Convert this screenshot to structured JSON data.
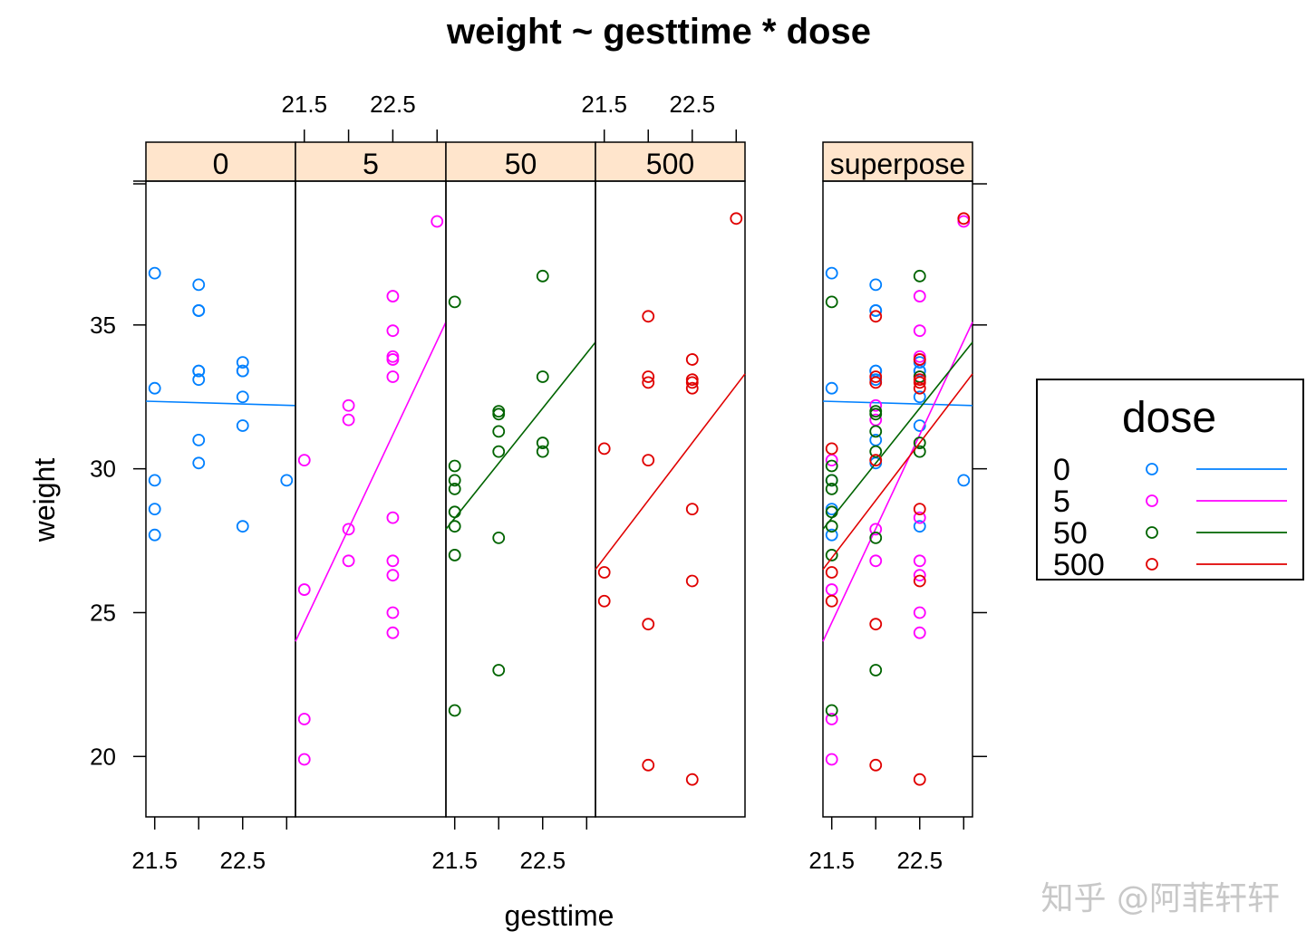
{
  "chart_data": {
    "type": "scatter",
    "title": "weight ~ gesttime * dose",
    "xlabel": "gesttime",
    "ylabel": "weight",
    "xlim": [
      21.4,
      23.1
    ],
    "ylim": [
      17.9,
      40.0
    ],
    "x_ticks": [
      21.5,
      22,
      22.5,
      23
    ],
    "x_tick_labels": [
      "21.5",
      "22.5"
    ],
    "y_ticks": [
      20,
      25,
      30,
      35
    ],
    "grid": false,
    "legend_title": "dose",
    "legend_position": "right",
    "panels": [
      "0",
      "5",
      "50",
      "500",
      "superpose"
    ],
    "strip_color": "#ffe5cc",
    "series": [
      {
        "name": "0",
        "color": "#0080ff",
        "points": [
          [
            21.5,
            36.8
          ],
          [
            21.5,
            32.8
          ],
          [
            21.5,
            29.6
          ],
          [
            21.5,
            28.6
          ],
          [
            21.5,
            27.7
          ],
          [
            22,
            36.4
          ],
          [
            22,
            35.5
          ],
          [
            22,
            35.5
          ],
          [
            22,
            33.4
          ],
          [
            22,
            33.4
          ],
          [
            22,
            33.1
          ],
          [
            22,
            31.0
          ],
          [
            22,
            30.2
          ],
          [
            22.5,
            33.7
          ],
          [
            22.5,
            33.4
          ],
          [
            22.5,
            33.4
          ],
          [
            22.5,
            32.5
          ],
          [
            22.5,
            31.5
          ],
          [
            22.5,
            28.0
          ],
          [
            23,
            29.6
          ]
        ],
        "fit": [
          [
            21.4,
            32.35
          ],
          [
            23.1,
            32.2
          ]
        ]
      },
      {
        "name": "5",
        "color": "#ff00ff",
        "points": [
          [
            21.5,
            30.3
          ],
          [
            21.5,
            25.8
          ],
          [
            21.5,
            21.3
          ],
          [
            21.5,
            19.9
          ],
          [
            22,
            32.2
          ],
          [
            22,
            31.7
          ],
          [
            22,
            27.9
          ],
          [
            22,
            26.8
          ],
          [
            22.5,
            36.0
          ],
          [
            22.5,
            34.8
          ],
          [
            22.5,
            33.9
          ],
          [
            22.5,
            33.8
          ],
          [
            22.5,
            33.2
          ],
          [
            22.5,
            28.3
          ],
          [
            22.5,
            26.8
          ],
          [
            22.5,
            26.3
          ],
          [
            22.5,
            25.0
          ],
          [
            22.5,
            24.3
          ],
          [
            23,
            38.6
          ]
        ],
        "fit": [
          [
            21.4,
            24.0
          ],
          [
            23.1,
            35.1
          ]
        ]
      },
      {
        "name": "50",
        "color": "#006400",
        "points": [
          [
            21.5,
            35.8
          ],
          [
            21.5,
            30.1
          ],
          [
            21.5,
            29.6
          ],
          [
            21.5,
            29.3
          ],
          [
            21.5,
            28.5
          ],
          [
            21.5,
            28.0
          ],
          [
            21.5,
            27.0
          ],
          [
            21.5,
            21.6
          ],
          [
            22,
            32.0
          ],
          [
            22,
            31.9
          ],
          [
            22,
            31.3
          ],
          [
            22,
            30.6
          ],
          [
            22,
            27.6
          ],
          [
            22,
            23.0
          ],
          [
            22.5,
            36.7
          ],
          [
            22.5,
            33.2
          ],
          [
            22.5,
            30.9
          ],
          [
            22.5,
            30.6
          ]
        ],
        "fit": [
          [
            21.4,
            27.9
          ],
          [
            23.1,
            34.4
          ]
        ]
      },
      {
        "name": "500",
        "color": "#e00000",
        "points": [
          [
            21.5,
            30.7
          ],
          [
            21.5,
            26.4
          ],
          [
            21.5,
            25.4
          ],
          [
            22,
            35.3
          ],
          [
            22,
            33.2
          ],
          [
            22,
            33.0
          ],
          [
            22,
            30.3
          ],
          [
            22,
            24.6
          ],
          [
            22,
            19.7
          ],
          [
            22.5,
            33.8
          ],
          [
            22.5,
            33.1
          ],
          [
            22.5,
            33.0
          ],
          [
            22.5,
            32.8
          ],
          [
            22.5,
            28.6
          ],
          [
            22.5,
            26.1
          ],
          [
            22.5,
            19.2
          ],
          [
            23,
            38.7
          ]
        ],
        "fit": [
          [
            21.4,
            26.5
          ],
          [
            23.1,
            33.3
          ]
        ]
      }
    ]
  },
  "watermark": "知乎 @阿菲轩轩"
}
